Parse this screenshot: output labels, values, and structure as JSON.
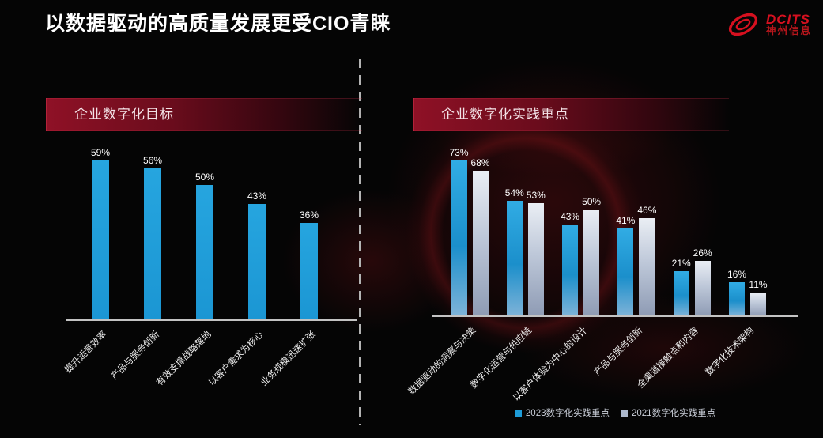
{
  "slide": {
    "title": "以数据驱动的高质量发展更受CIO青睐"
  },
  "logo": {
    "brand": "DCITS",
    "company": "神州信息",
    "icon": "red-swirl-ellipse"
  },
  "colors": {
    "background": "#050505",
    "banner_red": "#8F1126",
    "axis_line": "#C3C3C3",
    "title_text": "#FFFFFF",
    "logo_red": "#D6101F",
    "bar_blue": "#1E9CD8",
    "bar_gray": "#AEBACE",
    "divider_gray": "#B4B4B4"
  },
  "chart_data": [
    {
      "type": "bar",
      "title": "企业数字化目标",
      "categories": [
        "提升运营效率",
        "产品与服务创新",
        "有效支撑战略落地",
        "以客户需求为核心",
        "业务规模迅速扩张"
      ],
      "values": [
        59,
        56,
        50,
        43,
        36
      ],
      "value_suffix": "%",
      "data_labels": true,
      "grid": false,
      "y_axis_visible": false,
      "bar_color": "#1E9CD8",
      "category_label_rotation_deg": -45
    },
    {
      "type": "bar",
      "title": "企业数字化实践重点",
      "categories": [
        "数据驱动的洞察与决策",
        "数字化运营与供应链",
        "以客户体验为中心的设计",
        "产品与服务创新",
        "全渠道接触点和内容",
        "数字化技术架构"
      ],
      "series": [
        {
          "name": "2023数字化实践重点",
          "values": [
            73,
            54,
            43,
            41,
            21,
            16
          ],
          "color": "#1E9CD8"
        },
        {
          "name": "2021数字化实践重点",
          "values": [
            68,
            53,
            50,
            46,
            26,
            11
          ],
          "color": "#AEBACE"
        }
      ],
      "value_suffix": "%",
      "data_labels": true,
      "grid": false,
      "y_axis_visible": false,
      "legend_position": "bottom",
      "category_label_rotation_deg": -45
    }
  ]
}
